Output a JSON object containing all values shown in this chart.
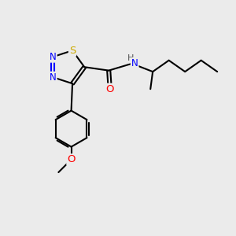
{
  "bg_color": "#ebebeb",
  "atom_colors": {
    "C": "#000000",
    "N": "#0000ff",
    "S": "#ccaa00",
    "O": "#ff0000",
    "H": "#555555"
  },
  "bond_color": "#000000",
  "bond_width": 1.5,
  "font_size_atom": 8.5,
  "xlim": [
    0,
    10
  ],
  "ylim": [
    0,
    10
  ]
}
